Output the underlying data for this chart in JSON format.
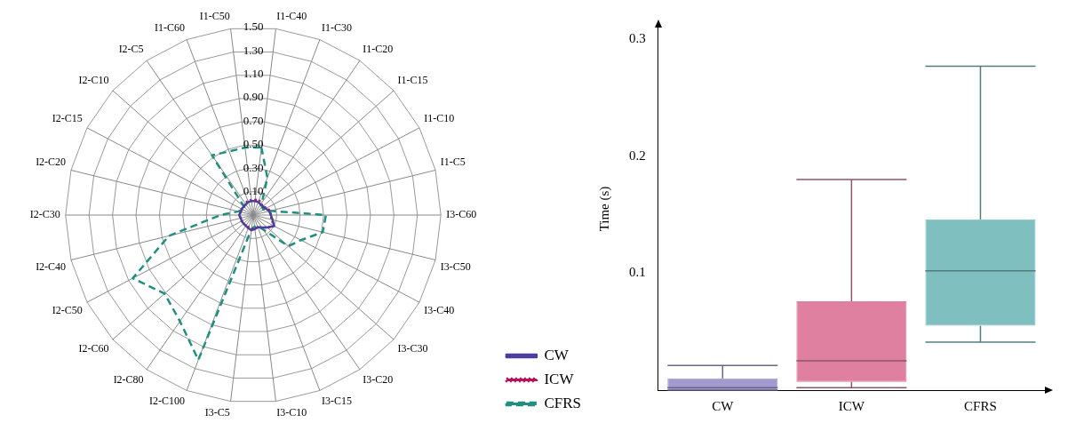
{
  "chart_data": [
    {
      "type": "radar",
      "categories": [
        "I1-C40",
        "I1-C30",
        "I1-C20",
        "I1-C15",
        "I1-C10",
        "I1-C5",
        "I3-C60",
        "I3-C50",
        "I3-C40",
        "I3-C30",
        "I3-C20",
        "I3-C15",
        "I3-C10",
        "I3-C5",
        "I2-C100",
        "I2-C80",
        "I2-C60",
        "I2-C50",
        "I2-C40",
        "I2-C30",
        "I2-C20",
        "I2-C15",
        "I2-C10",
        "I2-C5",
        "I1-C60",
        "I1-C50"
      ],
      "series": [
        {
          "name": "CW",
          "color": "#4b3f9e",
          "line_style": "solid",
          "values": [
            0.02,
            0.02,
            0.01,
            0.01,
            0.02,
            0.04,
            0.05,
            0.07,
            0.1,
            0.06,
            0.03,
            0.01,
            0.02,
            0.03,
            0.02,
            0.01,
            0.01,
            0.01,
            0.01,
            0.02,
            0.01,
            0.01,
            0.01,
            0.01,
            0.02,
            0.02
          ]
        },
        {
          "name": "ICW",
          "color": "#c0105a",
          "line_style": "dotted",
          "values": [
            0.03,
            0.04,
            0.02,
            0.01,
            0.03,
            0.05,
            0.05,
            0.06,
            0.1,
            0.06,
            0.03,
            0.01,
            0.02,
            0.02,
            0.01,
            0.01,
            0.01,
            0.01,
            0.01,
            0.02,
            0.01,
            0.01,
            0.01,
            0.02,
            0.03,
            0.03
          ]
        },
        {
          "name": "CFRS",
          "color": "#1f9080",
          "line_style": "dashed",
          "values": [
            0.48,
            0.24,
            0.03,
            0,
            0,
            0.05,
            0.52,
            0.51,
            0.36,
            0.3,
            0.05,
            0,
            0,
            0.02,
            1.22,
            1.0,
            0.91,
            1.06,
            0.64,
            0.18,
            0.03,
            0,
            0,
            0.52,
            0.48,
            0.48
          ]
        }
      ],
      "ylim": [
        -0.1,
        1.5
      ],
      "yticks": [
        {
          "value": 0.1,
          "label": "0.10"
        },
        {
          "value": 0.3,
          "label": "0.30"
        },
        {
          "value": 0.5,
          "label": "0.50"
        },
        {
          "value": 0.7,
          "label": "0.70"
        },
        {
          "value": 0.9,
          "label": "0.90"
        },
        {
          "value": 1.1,
          "label": "1.10"
        },
        {
          "value": 1.3,
          "label": "1.30"
        },
        {
          "value": 1.5,
          "label": "1.50"
        }
      ],
      "grid": true,
      "legend": "bottom right",
      "marker": "none"
    },
    {
      "type": "box",
      "categories": [
        "CW",
        "ICW",
        "CFRS"
      ],
      "colors": [
        "#a39bcf",
        "#df80a0",
        "#80bfbf"
      ],
      "boxes": [
        {
          "low": 0,
          "q1": 0,
          "median": 0.002,
          "q3": 0.01,
          "high": 0.021
        },
        {
          "low": 0.002,
          "q1": 0.007,
          "median": 0.025,
          "q3": 0.076,
          "high": 0.18
        },
        {
          "low": 0.041,
          "q1": 0.055,
          "median": 0.102,
          "q3": 0.146,
          "high": 0.277
        }
      ],
      "ylabel": "Time (s)",
      "ylim": [
        0,
        0.31
      ],
      "yticks": [
        0.1,
        0.2,
        0.3
      ]
    }
  ]
}
